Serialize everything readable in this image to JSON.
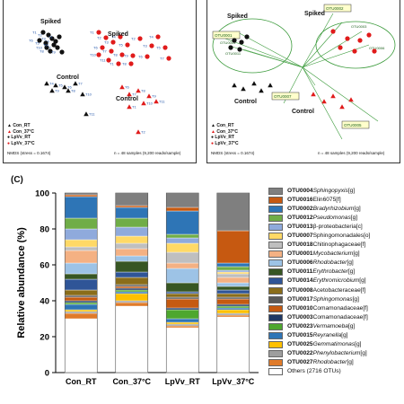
{
  "panel_a": {
    "labels": {
      "spiked": "Spiked",
      "control": "Control"
    },
    "stress": "NMDS (stress = 0.1674)",
    "samples": "n = 48 samples (9,200 reads/sample)",
    "legend": [
      {
        "label": "Con_RT",
        "shape": "triangle",
        "color": "#111111"
      },
      {
        "label": "Con_37°C",
        "shape": "triangle",
        "color": "#e01b1b"
      },
      {
        "label": "LpVv_RT",
        "shape": "circle",
        "color": "#111111"
      },
      {
        "label": "LpVv_37°C",
        "shape": "circle",
        "color": "#e01b1b"
      }
    ],
    "point_tags": [
      "T1",
      "T2",
      "T3",
      "T4",
      "T5",
      "T6",
      "T7",
      "T8",
      "T9",
      "T10",
      "T11"
    ]
  },
  "panel_b": {
    "labels": {
      "spiked": "Spiked",
      "control": "Control"
    },
    "stress": "NMDS (stress = 0.1674)",
    "samples": "n = 48 samples (9,200 reads/sample)",
    "legend": [
      {
        "label": "Con_RT",
        "shape": "triangle",
        "color": "#111111"
      },
      {
        "label": "Con_37°C",
        "shape": "triangle",
        "color": "#e01b1b"
      },
      {
        "label": "LpVv_RT",
        "shape": "circle",
        "color": "#111111"
      },
      {
        "label": "LpVv_37°C",
        "shape": "circle",
        "color": "#e01b1b"
      }
    ],
    "vector_labels": [
      "OTU0002",
      "OTU0007",
      "OTU0005",
      "OTU0001",
      "OTU0004",
      "OTU0003",
      "OTU0006",
      "OTU0011"
    ]
  },
  "panel_c": {
    "label": "(C)",
    "chart_data": {
      "type": "bar",
      "stacked": true,
      "ylabel": "Relative abundance (%)",
      "ylim": [
        0,
        100
      ],
      "yticks": [
        0,
        20,
        40,
        60,
        80,
        100
      ],
      "categories": [
        "Con_RT",
        "Con_37°C",
        "LpVv_RT",
        "LpVv_37°C"
      ],
      "series": [
        {
          "name": "Others (2716 OTUs)",
          "color": "#ffffff",
          "values": [
            30,
            37,
            25,
            31
          ]
        },
        {
          "name": "OTU0027 Rhodobacter [g]",
          "color": "#e07b2a",
          "values": [
            3,
            2,
            1,
            1
          ]
        },
        {
          "name": "OTU0022 Phenylobacterium [g]",
          "color": "#9e9e9e",
          "values": [
            1,
            1,
            1,
            1
          ]
        },
        {
          "name": "OTU0025 Gemmatimonas [g]",
          "color": "#ffc000",
          "values": [
            1,
            4,
            1,
            2
          ]
        },
        {
          "name": "OTU0015 Reyranella [g]",
          "color": "#2e75b6",
          "values": [
            3,
            1,
            2,
            1
          ]
        },
        {
          "name": "OTU0023 Vermamoeba [g]",
          "color": "#4ea72e",
          "values": [
            1,
            1,
            5,
            1
          ]
        },
        {
          "name": "OTU0003 Comamonadaceae [f]",
          "color": "#1f3864",
          "values": [
            1,
            1,
            1,
            1
          ]
        },
        {
          "name": "OTU0010 Comamonadaceae [f]",
          "color": "#c55a11",
          "values": [
            2,
            1,
            5,
            3
          ]
        },
        {
          "name": "OTU0017 Sphingomonas [g]",
          "color": "#595959",
          "values": [
            1,
            1,
            1,
            1
          ]
        },
        {
          "name": "OTU0008 Acetobacteraceae [f]",
          "color": "#8a6d1a",
          "values": [
            3,
            4,
            2,
            2
          ]
        },
        {
          "name": "OTU0014 Erythromicrobium [g]",
          "color": "#2f5597",
          "values": [
            6,
            3,
            1,
            2
          ]
        },
        {
          "name": "OTU0011 Erythrobacter [g]",
          "color": "#375623",
          "values": [
            3,
            6,
            5,
            2
          ]
        },
        {
          "name": "OTU0006 Rhodobacter [g]",
          "color": "#9dc3e6",
          "values": [
            6,
            3,
            8,
            2
          ]
        },
        {
          "name": "OTU0001 Mycobacterium [g]",
          "color": "#f4b183",
          "values": [
            7,
            4,
            3,
            3
          ]
        },
        {
          "name": "OTU0018 Chitinophagaceae [f]",
          "color": "#bfbfbf",
          "values": [
            2,
            3,
            6,
            2
          ]
        },
        {
          "name": "OTU0007 Sphingomonadales [o]",
          "color": "#ffd966",
          "values": [
            4,
            4,
            5,
            1
          ]
        },
        {
          "name": "OTU0013 β-proteobacteria [c]",
          "color": "#8faadc",
          "values": [
            6,
            5,
            3,
            1
          ]
        },
        {
          "name": "OTU0012 Pseudomonas [g]",
          "color": "#70ad47",
          "values": [
            6,
            5,
            2,
            2
          ]
        },
        {
          "name": "OTU0002 Bradyrhizobium [g]",
          "color": "#2e75b6",
          "values": [
            12,
            6,
            13,
            2
          ]
        },
        {
          "name": "OTU0016 Elin6075 [f]",
          "color": "#c65911",
          "values": [
            1,
            1,
            2,
            18
          ]
        },
        {
          "name": "OTU0004 Sphingopyxis [g]",
          "color": "#7f7f7f",
          "values": [
            1,
            7,
            8,
            21
          ]
        }
      ]
    },
    "legend": [
      {
        "id": "OTU0004",
        "name": "Sphingopyxis",
        "rank": "[g]",
        "italic": true,
        "color": "#7f7f7f"
      },
      {
        "id": "OTU0016",
        "name": "Elin6075",
        "rank": "[f]",
        "italic": false,
        "color": "#c65911"
      },
      {
        "id": "OTU0002",
        "name": "Bradyrhizobium",
        "rank": "[g]",
        "italic": true,
        "color": "#2e75b6"
      },
      {
        "id": "OTU0012",
        "name": "Pseudomonas",
        "rank": "[g]",
        "italic": true,
        "color": "#70ad47"
      },
      {
        "id": "OTU0013",
        "name": "β-proteobacteria",
        "rank": "[c]",
        "italic": false,
        "color": "#8faadc"
      },
      {
        "id": "OTU0007",
        "name": "Sphingomonadales",
        "rank": "[o]",
        "italic": false,
        "color": "#ffd966"
      },
      {
        "id": "OTU0018",
        "name": "Chitinophagaceae",
        "rank": "[f]",
        "italic": false,
        "color": "#bfbfbf"
      },
      {
        "id": "OTU0001",
        "name": "Mycobacterium",
        "rank": "[g]",
        "italic": true,
        "color": "#f4b183"
      },
      {
        "id": "OTU0006",
        "name": "Rhodobacter",
        "rank": "[g]",
        "italic": true,
        "color": "#9dc3e6"
      },
      {
        "id": "OTU0011",
        "name": "Erythrobacter",
        "rank": "[g]",
        "italic": true,
        "color": "#375623"
      },
      {
        "id": "OTU0014",
        "name": "Erythromicrobium",
        "rank": "[g]",
        "italic": true,
        "color": "#2f5597"
      },
      {
        "id": "OTU0008",
        "name": "Acetobacteraceae",
        "rank": "[f]",
        "italic": false,
        "color": "#8a6d1a"
      },
      {
        "id": "OTU0017",
        "name": "Sphingomonas",
        "rank": "[g]",
        "italic": true,
        "color": "#595959"
      },
      {
        "id": "OTU0010",
        "name": "Comamonadaceae",
        "rank": "[f]",
        "italic": false,
        "color": "#c55a11"
      },
      {
        "id": "OTU0003",
        "name": "Comamonadaceae",
        "rank": "[f]",
        "italic": false,
        "color": "#1f3864"
      },
      {
        "id": "OTU0023",
        "name": "Vermamoeba",
        "rank": "[g]",
        "italic": true,
        "color": "#4ea72e"
      },
      {
        "id": "OTU0015",
        "name": "Reyranella",
        "rank": "[g]",
        "italic": true,
        "color": "#2e75b6"
      },
      {
        "id": "OTU0025",
        "name": "Gemmatimonas",
        "rank": "[g]",
        "italic": true,
        "color": "#ffc000"
      },
      {
        "id": "OTU0022",
        "name": "Phenylobacterium",
        "rank": "[g]",
        "italic": true,
        "color": "#9e9e9e"
      },
      {
        "id": "OTU0027",
        "name": "Rhodobacter",
        "rank": "[g]",
        "italic": true,
        "color": "#e07b2a"
      },
      {
        "id": "",
        "name": "Others (2716 OTUs)",
        "rank": "",
        "italic": false,
        "color": "#ffffff"
      }
    ]
  }
}
